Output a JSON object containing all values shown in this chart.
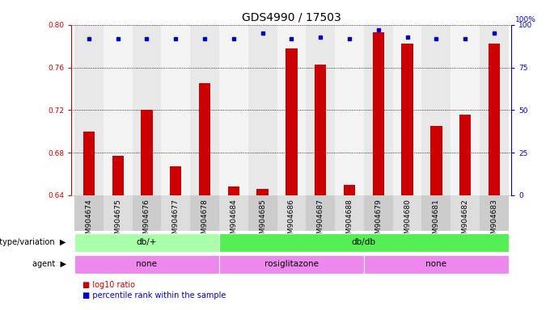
{
  "title": "GDS4990 / 17503",
  "samples": [
    "GSM904674",
    "GSM904675",
    "GSM904676",
    "GSM904677",
    "GSM904678",
    "GSM904684",
    "GSM904685",
    "GSM904686",
    "GSM904687",
    "GSM904688",
    "GSM904679",
    "GSM904680",
    "GSM904681",
    "GSM904682",
    "GSM904683"
  ],
  "log10_ratio": [
    0.7,
    0.677,
    0.72,
    0.667,
    0.745,
    0.648,
    0.646,
    0.778,
    0.763,
    0.65,
    0.793,
    0.782,
    0.705,
    0.716,
    0.782
  ],
  "percentile": [
    92,
    92,
    92,
    92,
    92,
    92,
    95,
    92,
    93,
    92,
    97,
    93,
    92,
    92,
    95
  ],
  "bar_color": "#cc0000",
  "dot_color": "#0000cc",
  "ylim_left": [
    0.64,
    0.8
  ],
  "ylim_right": [
    0,
    100
  ],
  "yticks_left": [
    0.64,
    0.68,
    0.72,
    0.76,
    0.8
  ],
  "yticks_right": [
    0,
    25,
    50,
    75,
    100
  ],
  "ylabel_left_color": "#cc0000",
  "ylabel_right_color": "#0000cc",
  "bg_color": "#ffffff",
  "plot_bg": "#ffffff",
  "genotype_segments": [
    {
      "text": "db/+",
      "start": 0,
      "end": 4,
      "color": "#aaffaa"
    },
    {
      "text": "db/db",
      "start": 5,
      "end": 14,
      "color": "#55ee55"
    }
  ],
  "agent_segments": [
    {
      "text": "none",
      "start": 0,
      "end": 4,
      "color": "#ee88ee"
    },
    {
      "text": "rosiglitazone",
      "start": 5,
      "end": 9,
      "color": "#ee88ee"
    },
    {
      "text": "none",
      "start": 10,
      "end": 14,
      "color": "#ee88ee"
    }
  ],
  "title_fontsize": 10,
  "tick_fontsize": 6.5,
  "label_fontsize": 7.5,
  "row_label_fontsize": 7,
  "legend_fontsize": 7
}
